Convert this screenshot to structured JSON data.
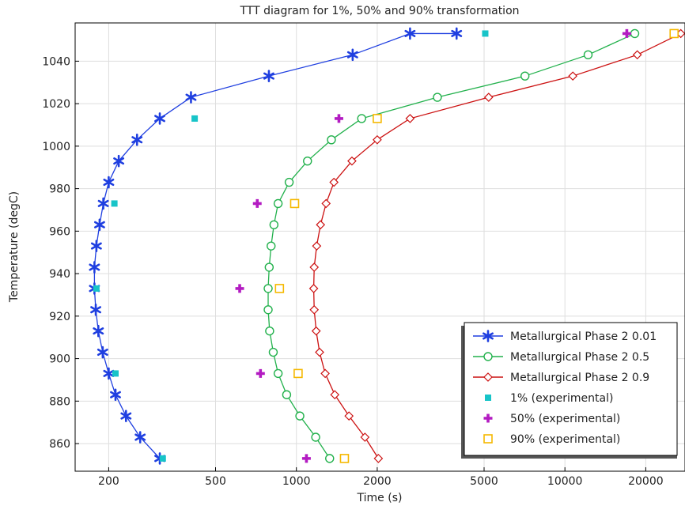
{
  "chart_data": {
    "type": "line",
    "title": "TTT diagram for 1%, 50% and 90% transformation",
    "xlabel": "Time (s)",
    "ylabel": "Temperature (degC)",
    "xscale": "log",
    "xlim": [
      150,
      28000
    ],
    "ylim": [
      847,
      1058
    ],
    "xticks": [
      200,
      500,
      1000,
      2000,
      5000,
      10000,
      20000
    ],
    "yticks": [
      860,
      880,
      900,
      920,
      940,
      960,
      980,
      1000,
      1020,
      1040
    ],
    "grid": true,
    "legend_position": "bottom-right",
    "series": [
      {
        "name": "Metallurgical Phase 2 0.01",
        "color": "#1f3fe0",
        "marker": "asterisk",
        "line": true,
        "x": [
          310,
          262,
          232,
          212,
          200,
          190,
          183,
          179,
          177,
          177,
          180,
          185,
          191,
          200,
          218,
          255,
          310,
          405,
          790,
          1620,
          2650,
          3950
        ],
        "y": [
          853,
          863,
          873,
          883,
          893,
          903,
          913,
          923,
          933,
          943,
          953,
          963,
          973,
          983,
          993,
          1003,
          1013,
          1023,
          1033,
          1043,
          1053,
          1053
        ]
      },
      {
        "name": "Metallurgical Phase 2 0.5",
        "color": "#22b14c",
        "marker": "circle",
        "line": true,
        "x": [
          1330,
          1180,
          1030,
          920,
          855,
          820,
          795,
          785,
          785,
          792,
          805,
          825,
          855,
          940,
          1100,
          1350,
          1750,
          3350,
          7100,
          12200,
          18200
        ],
        "y": [
          853,
          863,
          873,
          883,
          893,
          903,
          913,
          923,
          933,
          943,
          953,
          963,
          973,
          983,
          993,
          1003,
          1013,
          1023,
          1033,
          1043,
          1053
        ]
      },
      {
        "name": "Metallurgical Phase 2 0.9",
        "color": "#cc1111",
        "marker": "diamond",
        "line": true,
        "x": [
          2020,
          1800,
          1570,
          1390,
          1280,
          1220,
          1185,
          1165,
          1160,
          1165,
          1190,
          1230,
          1290,
          1380,
          1610,
          2000,
          2650,
          5200,
          10700,
          18600,
          27000
        ],
        "y": [
          853,
          863,
          873,
          883,
          893,
          903,
          913,
          923,
          933,
          943,
          953,
          963,
          973,
          983,
          993,
          1003,
          1013,
          1023,
          1033,
          1043,
          1053
        ]
      },
      {
        "name": "1% (experimental)",
        "color": "#17c4c8",
        "marker": "filled-square",
        "line": false,
        "x": [
          318,
          212,
          210,
          180,
          418,
          5050
        ],
        "y": [
          853,
          893,
          973,
          933,
          1013,
          1053
        ]
      },
      {
        "name": "50% (experimental)",
        "color": "#b31bc2",
        "marker": "plus",
        "line": false,
        "x": [
          1090,
          735,
          615,
          715,
          1440,
          17000
        ],
        "y": [
          853,
          893,
          933,
          973,
          1013,
          1053
        ]
      },
      {
        "name": "90% (experimental)",
        "color": "#f5b800",
        "marker": "open-square",
        "line": false,
        "x": [
          1510,
          1015,
          865,
          985,
          2000,
          25500
        ],
        "y": [
          853,
          893,
          933,
          973,
          1013,
          1053
        ]
      }
    ]
  }
}
